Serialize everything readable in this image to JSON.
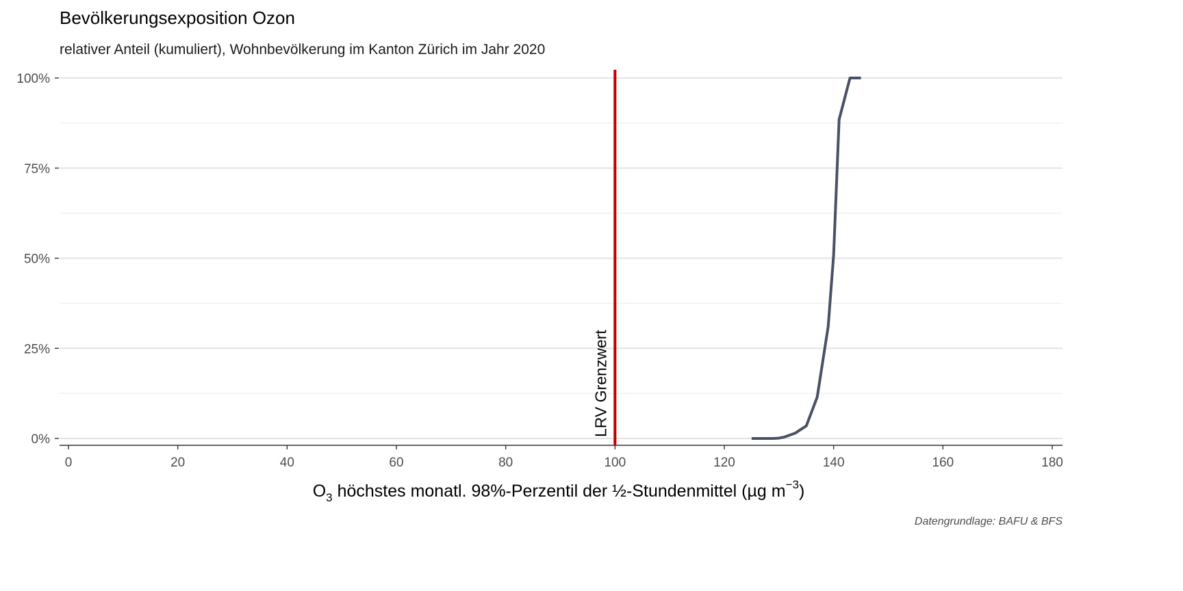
{
  "chart_data": {
    "type": "line",
    "title": "Bevölkerungsexposition Ozon",
    "subtitle": "relativer Anteil (kumuliert), Wohnbevölkerung im Kanton Zürich im Jahr 2020",
    "xlabel": {
      "prefix": "O",
      "subscript": "3",
      "middle": " höchstes monatl. 98%-Perzentil der ½-Stundenmittel (µg m",
      "superscript": "−3",
      "suffix": ")"
    },
    "ylabel": "",
    "caption": "Datengrundlage: BAFU & BFS",
    "xlim": [
      0,
      180
    ],
    "ylim": [
      0,
      1
    ],
    "x_ticks": [
      0,
      20,
      40,
      60,
      80,
      100,
      120,
      140,
      160,
      180
    ],
    "x_tick_labels": [
      "0",
      "20",
      "40",
      "60",
      "80",
      "100",
      "120",
      "140",
      "160",
      "180"
    ],
    "y_ticks": [
      0,
      0.25,
      0.5,
      0.75,
      1.0
    ],
    "y_tick_labels": [
      "0%",
      "25%",
      "50%",
      "75%",
      "100%"
    ],
    "grid": true,
    "series": [
      {
        "color": "#4a5166",
        "x": [
          125,
          127,
          129,
          130,
          131,
          133,
          135,
          137,
          139,
          140,
          141,
          143,
          145
        ],
        "y": [
          0.0,
          0.0,
          0.0,
          0.001,
          0.004,
          0.015,
          0.035,
          0.115,
          0.31,
          0.51,
          0.885,
          1.0,
          1.0
        ]
      }
    ],
    "reference_line": {
      "x": 100,
      "color": "#c00000",
      "label": "LRV Grenzwert"
    }
  }
}
